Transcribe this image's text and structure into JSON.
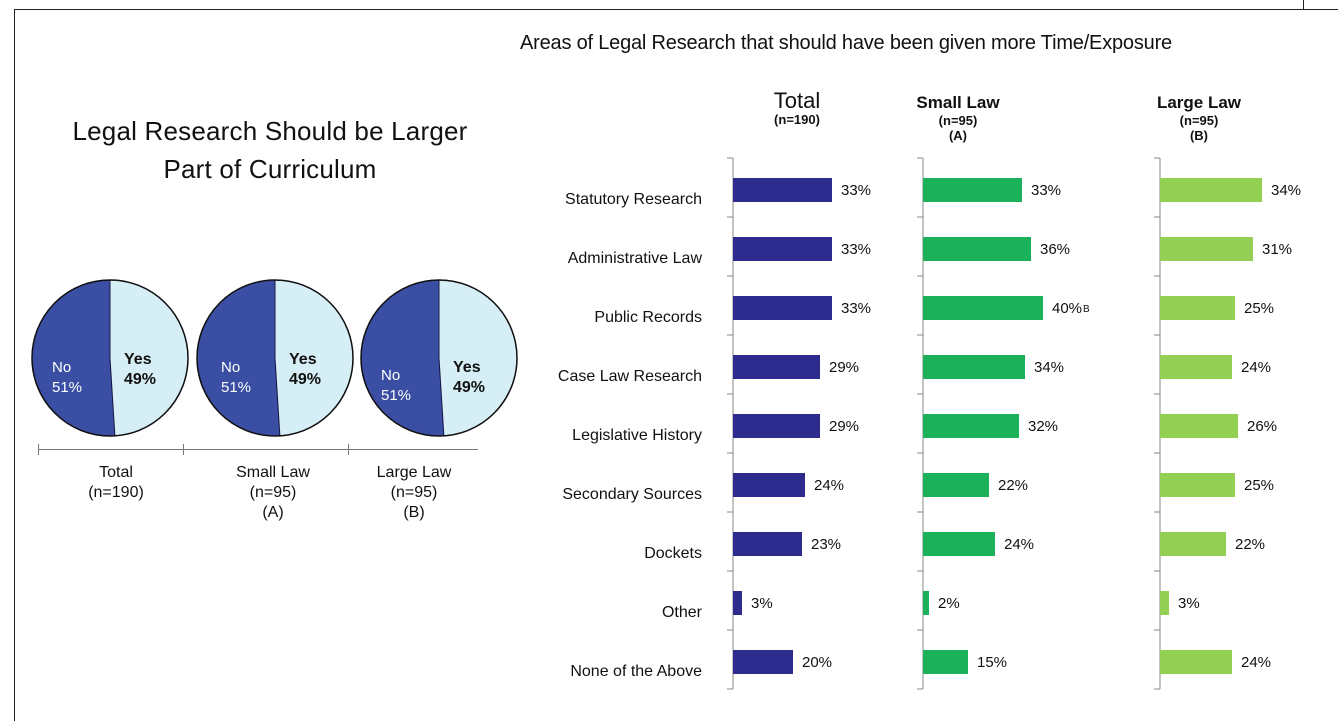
{
  "title": "Areas of Legal Research that should have been given more Time/Exposure",
  "pie_section": {
    "title_line1": "Legal Research Should be Larger",
    "title_line2": "Part of Curriculum"
  },
  "colors": {
    "no": "#3a4fa3",
    "yes": "#d6eef5",
    "total_bar": "#2e2b8f",
    "small_bar": "#1bb05a",
    "large_bar": "#92cf52"
  },
  "chart_data": [
    {
      "type": "pie",
      "title": "Legal Research Should be Larger Part of Curriculum",
      "groups": [
        {
          "name": "Total",
          "n": "(n=190)",
          "tag": "",
          "slices": [
            {
              "label": "No",
              "value": 51,
              "text": "51%"
            },
            {
              "label": "Yes",
              "value": 49,
              "text": "49%"
            }
          ]
        },
        {
          "name": "Small Law",
          "n": "(n=95)",
          "tag": "(A)",
          "slices": [
            {
              "label": "No",
              "value": 51,
              "text": "51%"
            },
            {
              "label": "Yes",
              "value": 49,
              "text": "49%"
            }
          ]
        },
        {
          "name": "Large Law",
          "n": "(n=95)",
          "tag": "(B)",
          "slices": [
            {
              "label": "No",
              "value": 51,
              "text": "51%"
            },
            {
              "label": "Yes",
              "value": 49,
              "text": "49%"
            }
          ]
        }
      ]
    },
    {
      "type": "bar",
      "orientation": "horizontal",
      "title": "Areas of Legal Research that should have been given more Time/Exposure",
      "categories": [
        "Statutory Research",
        "Administrative Law",
        "Public Records",
        "Case Law Research",
        "Legislative History",
        "Secondary Sources",
        "Dockets",
        "Other",
        "None of the Above"
      ],
      "series": [
        {
          "name": "Total",
          "n": "(n=190)",
          "tag": "",
          "values": [
            33,
            33,
            33,
            29,
            29,
            24,
            23,
            3,
            20
          ],
          "labels": [
            "33%",
            "33%",
            "33%",
            "29%",
            "29%",
            "24%",
            "23%",
            "3%",
            "20%"
          ],
          "sig": [
            "",
            "",
            "",
            "",
            "",
            "",
            "",
            "",
            ""
          ]
        },
        {
          "name": "Small Law",
          "n": "(n=95)",
          "tag": "(A)",
          "values": [
            33,
            36,
            40,
            34,
            32,
            22,
            24,
            2,
            15
          ],
          "labels": [
            "33%",
            "36%",
            "40%",
            "34%",
            "32%",
            "22%",
            "24%",
            "2%",
            "15%"
          ],
          "sig": [
            "",
            "",
            "B",
            "",
            "",
            "",
            "",
            "",
            ""
          ]
        },
        {
          "name": "Large Law",
          "n": "(n=95)",
          "tag": "(B)",
          "values": [
            34,
            31,
            25,
            24,
            26,
            25,
            22,
            3,
            24
          ],
          "labels": [
            "34%",
            "31%",
            "25%",
            "24%",
            "26%",
            "25%",
            "22%",
            "3%",
            "24%"
          ],
          "sig": [
            "",
            "",
            "",
            "",
            "",
            "",
            "",
            "",
            ""
          ]
        }
      ]
    }
  ]
}
